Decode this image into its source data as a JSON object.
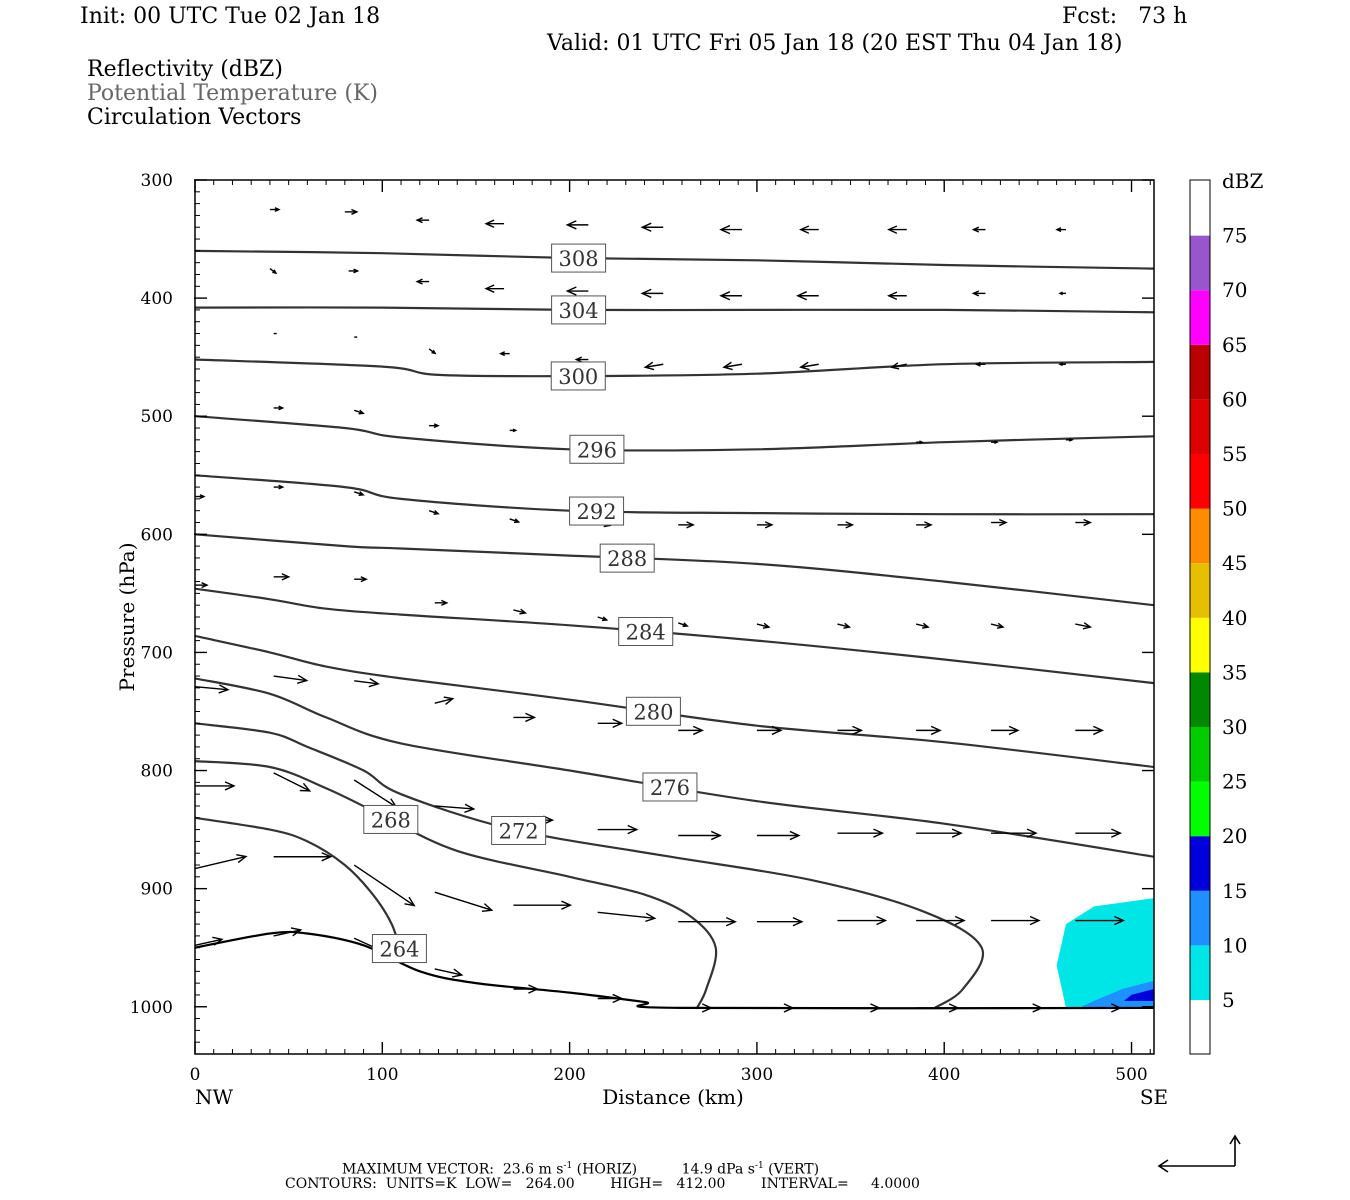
{
  "header": {
    "init": "Init: 00 UTC Tue 02 Jan 18",
    "fcst": "Fcst:   73 h",
    "valid": "Valid: 01 UTC Fri 05 Jan 18 (20 EST Thu 04 Jan 18)",
    "fields": [
      "Reflectivity (dBZ)",
      "Potential Temperature (K)",
      "Circulation Vectors"
    ]
  },
  "chart_data": {
    "type": "contour",
    "xlabel": "Distance (km)",
    "ylabel": "Pressure (hPa)",
    "x_start_label": "NW",
    "x_end_label": "SE",
    "xlim": [
      0,
      512
    ],
    "ylim": [
      1040,
      300
    ],
    "x_ticks": [
      "0",
      "100",
      "200",
      "300",
      "400",
      "500"
    ],
    "y_ticks": [
      "300",
      "400",
      "500",
      "600",
      "700",
      "800",
      "900",
      "1000"
    ],
    "surface_pressure": [
      {
        "x": 0,
        "p": 950
      },
      {
        "x": 40,
        "p": 938
      },
      {
        "x": 60,
        "p": 938
      },
      {
        "x": 90,
        "p": 948
      },
      {
        "x": 120,
        "p": 970
      },
      {
        "x": 150,
        "p": 980
      },
      {
        "x": 200,
        "p": 988
      },
      {
        "x": 240,
        "p": 996
      },
      {
        "x": 260,
        "p": 1001
      },
      {
        "x": 512,
        "p": 1001
      }
    ],
    "theta_contours": [
      {
        "label": "308",
        "points": [
          [
            0,
            360
          ],
          [
            100,
            362
          ],
          [
            200,
            366
          ],
          [
            300,
            368
          ],
          [
            400,
            372
          ],
          [
            512,
            375
          ]
        ]
      },
      {
        "label": "304",
        "points": [
          [
            0,
            408
          ],
          [
            100,
            408
          ],
          [
            200,
            410
          ],
          [
            300,
            410
          ],
          [
            400,
            410
          ],
          [
            512,
            412
          ]
        ]
      },
      {
        "label": "300",
        "points": [
          [
            0,
            452
          ],
          [
            100,
            458
          ],
          [
            130,
            465
          ],
          [
            200,
            466
          ],
          [
            300,
            464
          ],
          [
            400,
            456
          ],
          [
            512,
            454
          ]
        ]
      },
      {
        "label": "296",
        "points": [
          [
            0,
            500
          ],
          [
            80,
            510
          ],
          [
            110,
            518
          ],
          [
            200,
            528
          ],
          [
            300,
            528
          ],
          [
            400,
            522
          ],
          [
            512,
            517
          ]
        ]
      },
      {
        "label": "292",
        "points": [
          [
            0,
            550
          ],
          [
            80,
            560
          ],
          [
            110,
            570
          ],
          [
            200,
            580
          ],
          [
            300,
            582
          ],
          [
            400,
            583
          ],
          [
            512,
            583
          ]
        ]
      },
      {
        "label": "288",
        "points": [
          [
            0,
            600
          ],
          [
            80,
            610
          ],
          [
            110,
            612
          ],
          [
            200,
            618
          ],
          [
            300,
            625
          ],
          [
            400,
            640
          ],
          [
            512,
            660
          ]
        ]
      },
      {
        "label": "284",
        "points": [
          [
            0,
            646
          ],
          [
            40,
            655
          ],
          [
            70,
            663
          ],
          [
            110,
            668
          ],
          [
            200,
            677
          ],
          [
            300,
            690
          ],
          [
            400,
            706
          ],
          [
            512,
            726
          ]
        ]
      },
      {
        "label": "280",
        "points": [
          [
            0,
            686
          ],
          [
            40,
            700
          ],
          [
            70,
            712
          ],
          [
            110,
            722
          ],
          [
            200,
            740
          ],
          [
            300,
            762
          ],
          [
            400,
            776
          ],
          [
            512,
            797
          ]
        ]
      },
      {
        "label": "276",
        "points": [
          [
            0,
            722
          ],
          [
            40,
            735
          ],
          [
            70,
            755
          ],
          [
            110,
            777
          ],
          [
            200,
            800
          ],
          [
            300,
            826
          ],
          [
            400,
            845
          ],
          [
            512,
            873
          ]
        ]
      },
      {
        "label": "272",
        "points": [
          [
            0,
            760
          ],
          [
            40,
            768
          ],
          [
            60,
            780
          ],
          [
            90,
            800
          ],
          [
            110,
            820
          ],
          [
            170,
            850
          ],
          [
            250,
            872
          ],
          [
            330,
            893
          ],
          [
            390,
            920
          ],
          [
            420,
            950
          ],
          [
            410,
            985
          ],
          [
            395,
            1001
          ]
        ]
      },
      {
        "label": "268",
        "points": [
          [
            0,
            792
          ],
          [
            40,
            797
          ],
          [
            70,
            815
          ],
          [
            100,
            838
          ],
          [
            140,
            868
          ],
          [
            200,
            890
          ],
          [
            240,
            905
          ],
          [
            265,
            924
          ],
          [
            278,
            950
          ],
          [
            273,
            985
          ],
          [
            268,
            1001
          ]
        ]
      },
      {
        "label": "264",
        "points": [
          [
            0,
            840
          ],
          [
            40,
            850
          ],
          [
            60,
            860
          ],
          [
            80,
            880
          ],
          [
            95,
            905
          ],
          [
            105,
            930
          ],
          [
            110,
            955
          ]
        ]
      }
    ],
    "reflectivity_scale": {
      "unit": "dBZ",
      "levels": [
        "5",
        "10",
        "15",
        "20",
        "25",
        "30",
        "35",
        "40",
        "45",
        "50",
        "55",
        "60",
        "65",
        "70",
        "75"
      ],
      "colors": [
        "#00e6e6",
        "#1e90ff",
        "#0000dd",
        "#00ff00",
        "#00cc00",
        "#008800",
        "#ffff00",
        "#e6c000",
        "#ff8c00",
        "#ff0000",
        "#dd0000",
        "#bb0000",
        "#ff00ff",
        "#9955cc",
        "#ffffff"
      ]
    },
    "reflectivity_areas": [
      {
        "level": "5",
        "color": "#00e6e6",
        "points": [
          [
            512,
            908
          ],
          [
            480,
            915
          ],
          [
            465,
            930
          ],
          [
            460,
            965
          ],
          [
            465,
            1001
          ],
          [
            512,
            1001
          ]
        ]
      },
      {
        "level": "10",
        "color": "#1e90ff",
        "points": [
          [
            512,
            978
          ],
          [
            495,
            985
          ],
          [
            480,
            995
          ],
          [
            472,
            1001
          ],
          [
            512,
            1001
          ]
        ]
      },
      {
        "level": "15",
        "color": "#0000dd",
        "points": [
          [
            512,
            985
          ],
          [
            500,
            990
          ],
          [
            496,
            995
          ],
          [
            512,
            995
          ]
        ]
      }
    ],
    "vectors": [
      {
        "x": 40,
        "p": 325,
        "dx": 6,
        "dp": 0
      },
      {
        "x": 80,
        "p": 327,
        "dx": 8,
        "dp": 0
      },
      {
        "x": 125,
        "p": 334,
        "dx": -8,
        "dp": 0
      },
      {
        "x": 165,
        "p": 337,
        "dx": -12,
        "dp": 0
      },
      {
        "x": 210,
        "p": 338,
        "dx": -14,
        "dp": 0
      },
      {
        "x": 250,
        "p": 340,
        "dx": -14,
        "dp": 0
      },
      {
        "x": 292,
        "p": 342,
        "dx": -14,
        "dp": 0
      },
      {
        "x": 333,
        "p": 342,
        "dx": -12,
        "dp": 0
      },
      {
        "x": 380,
        "p": 342,
        "dx": -12,
        "dp": 0
      },
      {
        "x": 422,
        "p": 342,
        "dx": -8,
        "dp": 0
      },
      {
        "x": 465,
        "p": 342,
        "dx": -6,
        "dp": 0
      },
      {
        "x": 40,
        "p": 375,
        "dx": 4,
        "dp": 3
      },
      {
        "x": 82,
        "p": 377,
        "dx": 6,
        "dp": 0
      },
      {
        "x": 125,
        "p": 386,
        "dx": -8,
        "dp": 0
      },
      {
        "x": 165,
        "p": 392,
        "dx": -12,
        "dp": 0
      },
      {
        "x": 210,
        "p": 394,
        "dx": -14,
        "dp": 0
      },
      {
        "x": 250,
        "p": 396,
        "dx": -14,
        "dp": 0
      },
      {
        "x": 292,
        "p": 398,
        "dx": -14,
        "dp": 0
      },
      {
        "x": 333,
        "p": 398,
        "dx": -14,
        "dp": 0
      },
      {
        "x": 380,
        "p": 398,
        "dx": -12,
        "dp": 0
      },
      {
        "x": 422,
        "p": 396,
        "dx": -8,
        "dp": 0
      },
      {
        "x": 465,
        "p": 396,
        "dx": -4,
        "dp": 0
      },
      {
        "x": 42,
        "p": 430,
        "dx": 2,
        "dp": 0
      },
      {
        "x": 85,
        "p": 433,
        "dx": 2,
        "dp": 0
      },
      {
        "x": 125,
        "p": 443,
        "dx": 4,
        "dp": 3
      },
      {
        "x": 168,
        "p": 447,
        "dx": -6,
        "dp": 0
      },
      {
        "x": 210,
        "p": 452,
        "dx": -8,
        "dp": 0
      },
      {
        "x": 250,
        "p": 456,
        "dx": -12,
        "dp": 2
      },
      {
        "x": 292,
        "p": 456,
        "dx": -12,
        "dp": 2
      },
      {
        "x": 333,
        "p": 456,
        "dx": -12,
        "dp": 2
      },
      {
        "x": 380,
        "p": 456,
        "dx": -10,
        "dp": 2
      },
      {
        "x": 422,
        "p": 456,
        "dx": -6,
        "dp": 0
      },
      {
        "x": 465,
        "p": 456,
        "dx": -4,
        "dp": 0
      },
      {
        "x": 42,
        "p": 493,
        "dx": 6,
        "dp": 0
      },
      {
        "x": 85,
        "p": 495,
        "dx": 6,
        "dp": 2
      },
      {
        "x": 125,
        "p": 508,
        "dx": 6,
        "dp": 0
      },
      {
        "x": 168,
        "p": 512,
        "dx": 4,
        "dp": 0
      },
      {
        "x": 215,
        "p": 520,
        "dx": 2,
        "dp": 3
      },
      {
        "x": 258,
        "p": 522,
        "dx": 0,
        "dp": 0
      },
      {
        "x": 300,
        "p": 522,
        "dx": 0,
        "dp": 0
      },
      {
        "x": 343,
        "p": 522,
        "dx": 0,
        "dp": 0
      },
      {
        "x": 385,
        "p": 522,
        "dx": 4,
        "dp": 0
      },
      {
        "x": 425,
        "p": 522,
        "dx": 4,
        "dp": 0
      },
      {
        "x": 465,
        "p": 520,
        "dx": 4,
        "dp": 0
      },
      {
        "x": 0,
        "p": 568,
        "dx": 6,
        "dp": 0
      },
      {
        "x": 42,
        "p": 560,
        "dx": 6,
        "dp": 0
      },
      {
        "x": 85,
        "p": 564,
        "dx": 6,
        "dp": 2
      },
      {
        "x": 125,
        "p": 580,
        "dx": 6,
        "dp": 2
      },
      {
        "x": 168,
        "p": 587,
        "dx": 6,
        "dp": 2
      },
      {
        "x": 215,
        "p": 590,
        "dx": 8,
        "dp": 2
      },
      {
        "x": 258,
        "p": 592,
        "dx": 10,
        "dp": 0
      },
      {
        "x": 300,
        "p": 592,
        "dx": 10,
        "dp": 0
      },
      {
        "x": 343,
        "p": 592,
        "dx": 10,
        "dp": 0
      },
      {
        "x": 385,
        "p": 592,
        "dx": 10,
        "dp": 0
      },
      {
        "x": 425,
        "p": 590,
        "dx": 10,
        "dp": 0
      },
      {
        "x": 470,
        "p": 590,
        "dx": 10,
        "dp": 0
      },
      {
        "x": 0,
        "p": 643,
        "dx": 8,
        "dp": 0
      },
      {
        "x": 42,
        "p": 636,
        "dx": 10,
        "dp": 0
      },
      {
        "x": 85,
        "p": 638,
        "dx": 8,
        "dp": 0
      },
      {
        "x": 128,
        "p": 658,
        "dx": 8,
        "dp": 0
      },
      {
        "x": 170,
        "p": 664,
        "dx": 8,
        "dp": 2
      },
      {
        "x": 215,
        "p": 670,
        "dx": 6,
        "dp": 2
      },
      {
        "x": 258,
        "p": 675,
        "dx": 6,
        "dp": 2
      },
      {
        "x": 300,
        "p": 676,
        "dx": 8,
        "dp": 2
      },
      {
        "x": 343,
        "p": 676,
        "dx": 8,
        "dp": 2
      },
      {
        "x": 385,
        "p": 676,
        "dx": 8,
        "dp": 2
      },
      {
        "x": 425,
        "p": 676,
        "dx": 8,
        "dp": 2
      },
      {
        "x": 470,
        "p": 676,
        "dx": 10,
        "dp": 2
      },
      {
        "x": 0,
        "p": 729,
        "dx": 22,
        "dp": 2
      },
      {
        "x": 42,
        "p": 720,
        "dx": 22,
        "dp": 3
      },
      {
        "x": 85,
        "p": 724,
        "dx": 16,
        "dp": 2
      },
      {
        "x": 128,
        "p": 743,
        "dx": 12,
        "dp": -3
      },
      {
        "x": 170,
        "p": 755,
        "dx": 14,
        "dp": 0
      },
      {
        "x": 215,
        "p": 760,
        "dx": 16,
        "dp": 0
      },
      {
        "x": 258,
        "p": 766,
        "dx": 16,
        "dp": 0
      },
      {
        "x": 300,
        "p": 766,
        "dx": 16,
        "dp": 0
      },
      {
        "x": 343,
        "p": 766,
        "dx": 16,
        "dp": 0
      },
      {
        "x": 385,
        "p": 766,
        "dx": 16,
        "dp": 0
      },
      {
        "x": 425,
        "p": 766,
        "dx": 18,
        "dp": 0
      },
      {
        "x": 470,
        "p": 766,
        "dx": 18,
        "dp": 0
      },
      {
        "x": 0,
        "p": 813,
        "dx": 26,
        "dp": 0
      },
      {
        "x": 42,
        "p": 802,
        "dx": 24,
        "dp": 12
      },
      {
        "x": 85,
        "p": 808,
        "dx": 28,
        "dp": 18
      },
      {
        "x": 128,
        "p": 830,
        "dx": 26,
        "dp": 2
      },
      {
        "x": 170,
        "p": 842,
        "dx": 26,
        "dp": 0
      },
      {
        "x": 215,
        "p": 850,
        "dx": 26,
        "dp": 0
      },
      {
        "x": 258,
        "p": 855,
        "dx": 28,
        "dp": 0
      },
      {
        "x": 300,
        "p": 855,
        "dx": 28,
        "dp": 0
      },
      {
        "x": 343,
        "p": 853,
        "dx": 30,
        "dp": 0
      },
      {
        "x": 385,
        "p": 853,
        "dx": 30,
        "dp": 0
      },
      {
        "x": 425,
        "p": 853,
        "dx": 30,
        "dp": 0
      },
      {
        "x": 470,
        "p": 853,
        "dx": 30,
        "dp": 0
      },
      {
        "x": 0,
        "p": 883,
        "dx": 34,
        "dp": -8
      },
      {
        "x": 42,
        "p": 873,
        "dx": 38,
        "dp": 0
      },
      {
        "x": 85,
        "p": 880,
        "dx": 40,
        "dp": 27
      },
      {
        "x": 128,
        "p": 903,
        "dx": 38,
        "dp": 12
      },
      {
        "x": 170,
        "p": 914,
        "dx": 38,
        "dp": 0
      },
      {
        "x": 215,
        "p": 920,
        "dx": 38,
        "dp": 4
      },
      {
        "x": 258,
        "p": 928,
        "dx": 38,
        "dp": 0
      },
      {
        "x": 300,
        "p": 928,
        "dx": 30,
        "dp": 0
      },
      {
        "x": 343,
        "p": 927,
        "dx": 32,
        "dp": 0
      },
      {
        "x": 385,
        "p": 927,
        "dx": 32,
        "dp": 0
      },
      {
        "x": 425,
        "p": 927,
        "dx": 32,
        "dp": 0
      },
      {
        "x": 470,
        "p": 927,
        "dx": 32,
        "dp": 0
      },
      {
        "x": 0,
        "p": 948,
        "dx": 18,
        "dp": -4
      },
      {
        "x": 42,
        "p": 940,
        "dx": 18,
        "dp": -4
      },
      {
        "x": 85,
        "p": 942,
        "dx": 22,
        "dp": 10
      },
      {
        "x": 128,
        "p": 968,
        "dx": 18,
        "dp": 4
      },
      {
        "x": 170,
        "p": 985,
        "dx": 16,
        "dp": 0
      },
      {
        "x": 215,
        "p": 993,
        "dx": 16,
        "dp": 0
      },
      {
        "x": 258,
        "p": 1001,
        "dx": 22,
        "dp": 0
      },
      {
        "x": 300,
        "p": 1001,
        "dx": 24,
        "dp": 0
      },
      {
        "x": 343,
        "p": 1001,
        "dx": 28,
        "dp": 0
      },
      {
        "x": 385,
        "p": 1001,
        "dx": 28,
        "dp": 0
      },
      {
        "x": 428,
        "p": 1001,
        "dx": 30,
        "dp": 0
      },
      {
        "x": 470,
        "p": 1001,
        "dx": 30,
        "dp": 0
      }
    ]
  },
  "footer": {
    "max_vector_prefix": "MAXIMUM VECTOR:  23.6 m s",
    "max_vector_exp": "-1",
    "max_vector_mid": " (HORIZ)          14.9 dPa s",
    "max_vector_exp2": "-1",
    "max_vector_suffix": " (VERT)",
    "contours": "CONTOURS:  UNITS=K  LOW=   264.00        HIGH=   412.00        INTERVAL=     4.0000"
  }
}
